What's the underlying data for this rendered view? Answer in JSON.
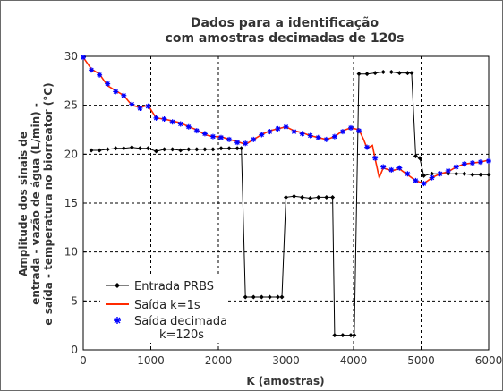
{
  "chart_data": {
    "type": "line",
    "title": [
      "Dados para a identificação",
      "com amostras decimadas de 120s"
    ],
    "xlabel": "K (amostras)",
    "ylabel": [
      "Amplitude dos sinais de",
      "entrada - vazão de água (L/min) -",
      "e saída - temperatura no biorreator (°C)"
    ],
    "xlim": [
      0,
      6000
    ],
    "ylim": [
      0,
      30
    ],
    "xticks": [
      "0",
      "1000",
      "2000",
      "3000",
      "4000",
      "5000",
      "6000"
    ],
    "yticks": [
      "0",
      "5",
      "10",
      "15",
      "20",
      "25",
      "30"
    ],
    "grid": true,
    "legend_position": "bottom-left",
    "series": [
      {
        "name": "Entrada PRBS",
        "color": "#000000",
        "marker": "diamond",
        "x": [
          120,
          240,
          360,
          480,
          600,
          720,
          840,
          960,
          1080,
          1200,
          1320,
          1440,
          1560,
          1680,
          1800,
          1920,
          2040,
          2160,
          2280,
          2340,
          2400,
          2520,
          2640,
          2760,
          2880,
          2940,
          3000,
          3120,
          3240,
          3360,
          3480,
          3600,
          3690,
          3720,
          3840,
          3960,
          4010,
          4080,
          4200,
          4320,
          4440,
          4560,
          4680,
          4800,
          4860,
          4920,
          4980,
          5040,
          5160,
          5280,
          5400,
          5520,
          5640,
          5760,
          5880,
          6000
        ],
        "y": [
          20.4,
          20.4,
          20.5,
          20.6,
          20.6,
          20.7,
          20.6,
          20.6,
          20.3,
          20.5,
          20.5,
          20.4,
          20.5,
          20.5,
          20.5,
          20.5,
          20.6,
          20.6,
          20.6,
          20.6,
          5.4,
          5.4,
          5.4,
          5.4,
          5.4,
          5.4,
          15.6,
          15.7,
          15.6,
          15.5,
          15.6,
          15.6,
          15.6,
          1.5,
          1.5,
          1.5,
          1.5,
          28.2,
          28.2,
          28.3,
          28.4,
          28.4,
          28.3,
          28.3,
          28.3,
          19.8,
          19.6,
          17.8,
          18.0,
          18.0,
          18.0,
          18.0,
          18.0,
          17.9,
          17.9,
          17.9
        ]
      },
      {
        "name": "Saída k=1s",
        "color": "#ff2a00",
        "marker": "none",
        "x": [
          0,
          120,
          240,
          360,
          480,
          600,
          720,
          840,
          960,
          1080,
          1200,
          1320,
          1440,
          1560,
          1680,
          1800,
          1920,
          2040,
          2160,
          2280,
          2400,
          2520,
          2640,
          2760,
          2880,
          3000,
          3120,
          3240,
          3360,
          3480,
          3600,
          3720,
          3840,
          3960,
          4080,
          4150,
          4200,
          4280,
          4320,
          4380,
          4440,
          4560,
          4680,
          4800,
          4920,
          5040,
          5160,
          5280,
          5400,
          5520,
          5640,
          5760,
          5880,
          6000
        ],
        "y": [
          29.9,
          28.7,
          28.2,
          27.0,
          26.5,
          26.0,
          25.0,
          24.8,
          25.0,
          23.7,
          23.6,
          23.4,
          23.2,
          22.8,
          22.5,
          22.0,
          21.8,
          21.8,
          21.5,
          21.3,
          21.0,
          21.5,
          22.0,
          22.4,
          22.6,
          22.8,
          22.4,
          22.2,
          21.9,
          21.7,
          21.5,
          21.8,
          22.4,
          22.7,
          22.5,
          21.5,
          20.6,
          20.9,
          19.5,
          17.6,
          18.6,
          18.3,
          18.5,
          17.9,
          17.3,
          17.0,
          17.6,
          18.0,
          18.2,
          18.7,
          19.0,
          19.1,
          19.2,
          19.4
        ]
      },
      {
        "name": "Saída decimada\nk=120s",
        "color": "#0000ff",
        "marker": "star",
        "x": [
          0,
          120,
          240,
          360,
          480,
          600,
          720,
          840,
          960,
          1080,
          1200,
          1320,
          1440,
          1560,
          1680,
          1800,
          1920,
          2040,
          2160,
          2280,
          2400,
          2520,
          2640,
          2760,
          2880,
          3000,
          3120,
          3240,
          3360,
          3480,
          3600,
          3720,
          3840,
          3960,
          4080,
          4200,
          4320,
          4440,
          4560,
          4680,
          4800,
          4920,
          5040,
          5160,
          5280,
          5400,
          5520,
          5640,
          5760,
          5880,
          6000
        ],
        "y": [
          29.9,
          28.6,
          28.1,
          27.2,
          26.4,
          26.0,
          25.1,
          24.7,
          24.9,
          23.7,
          23.6,
          23.3,
          23.1,
          22.8,
          22.4,
          22.1,
          21.8,
          21.7,
          21.5,
          21.2,
          21.1,
          21.5,
          22.0,
          22.3,
          22.6,
          22.8,
          22.3,
          22.1,
          21.9,
          21.7,
          21.5,
          21.8,
          22.3,
          22.7,
          22.4,
          20.7,
          19.6,
          18.7,
          18.4,
          18.6,
          18.0,
          17.3,
          17.0,
          17.6,
          18.0,
          18.3,
          18.7,
          19.0,
          19.1,
          19.2,
          19.3
        ]
      }
    ]
  }
}
